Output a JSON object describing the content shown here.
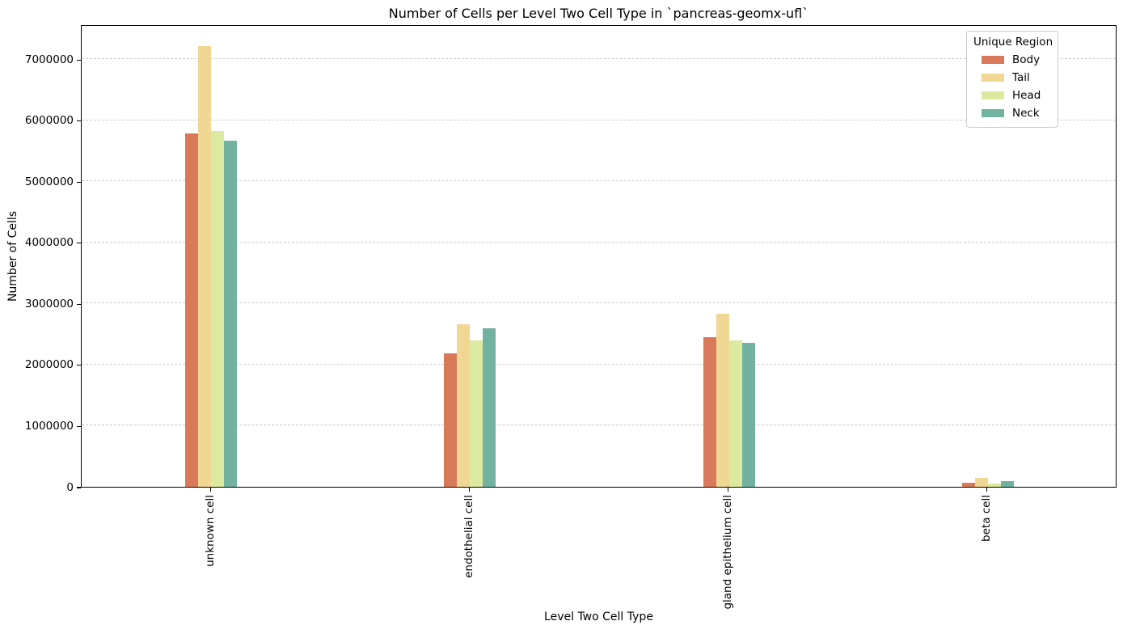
{
  "chart_data": {
    "type": "bar",
    "title": "Number of Cells per Level Two Cell Type in `pancreas-geomx-ufl`",
    "xlabel": "Level Two Cell Type",
    "ylabel": "Number of Cells",
    "categories": [
      "unknown cell",
      "endothelial cell",
      "gland epithelium cell",
      "beta cell"
    ],
    "series": [
      {
        "name": "Body",
        "color": "#d87a5a",
        "values": [
          5790000,
          2180000,
          2450000,
          70000
        ]
      },
      {
        "name": "Tail",
        "color": "#f0d794",
        "values": [
          7210000,
          2660000,
          2830000,
          140000
        ]
      },
      {
        "name": "Head",
        "color": "#dcea9f",
        "values": [
          5830000,
          2390000,
          2400000,
          50000
        ]
      },
      {
        "name": "Neck",
        "color": "#72b2a0",
        "values": [
          5660000,
          2600000,
          2350000,
          90000
        ]
      }
    ],
    "ylim": [
      0,
      7570000
    ],
    "yticks": [
      0,
      1000000,
      2000000,
      3000000,
      4000000,
      5000000,
      6000000,
      7000000
    ],
    "grid": "dashed-horizontal",
    "legend": {
      "title": "Unique Region",
      "position": "upper-right"
    }
  }
}
